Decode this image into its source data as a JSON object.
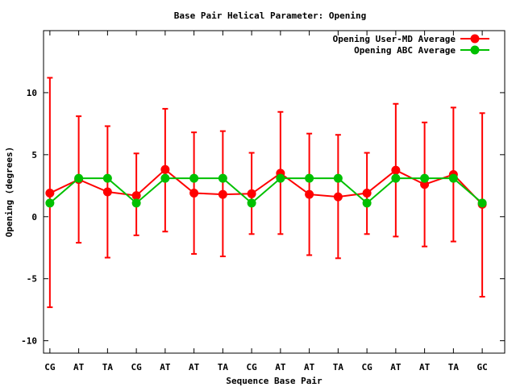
{
  "chart_data": {
    "type": "line",
    "title": "Base Pair Helical Parameter: Opening",
    "xlabel": "Sequence Base Pair",
    "ylabel": "Opening (degrees)",
    "categories": [
      "CG",
      "AT",
      "TA",
      "CG",
      "AT",
      "AT",
      "TA",
      "CG",
      "AT",
      "AT",
      "TA",
      "CG",
      "AT",
      "AT",
      "TA",
      "GC"
    ],
    "ylim": [
      -11,
      15
    ],
    "yticks": [
      -10,
      -5,
      0,
      5,
      10
    ],
    "legend_position": "top-right",
    "series": [
      {
        "name": "Opening User-MD Average",
        "color": "#ff0000",
        "values": [
          1.9,
          3.0,
          2.0,
          1.7,
          3.8,
          1.9,
          1.8,
          1.85,
          3.5,
          1.8,
          1.6,
          1.9,
          3.75,
          2.6,
          3.4,
          1.0
        ],
        "error_low": [
          -7.3,
          -2.1,
          -3.3,
          -1.5,
          -1.2,
          -3.0,
          -3.2,
          -1.4,
          -1.4,
          -3.1,
          -3.35,
          -1.4,
          -1.6,
          -2.4,
          -2.0,
          -6.45
        ],
        "error_high": [
          11.2,
          8.1,
          7.3,
          5.1,
          8.7,
          6.8,
          6.9,
          5.15,
          8.45,
          6.7,
          6.6,
          5.15,
          9.1,
          7.6,
          8.8,
          8.35
        ]
      },
      {
        "name": "Opening ABC Average",
        "color": "#00c000",
        "values": [
          1.1,
          3.1,
          3.1,
          1.1,
          3.1,
          3.1,
          3.1,
          1.1,
          3.1,
          3.1,
          3.1,
          1.1,
          3.1,
          3.1,
          3.1,
          1.1
        ]
      }
    ]
  }
}
